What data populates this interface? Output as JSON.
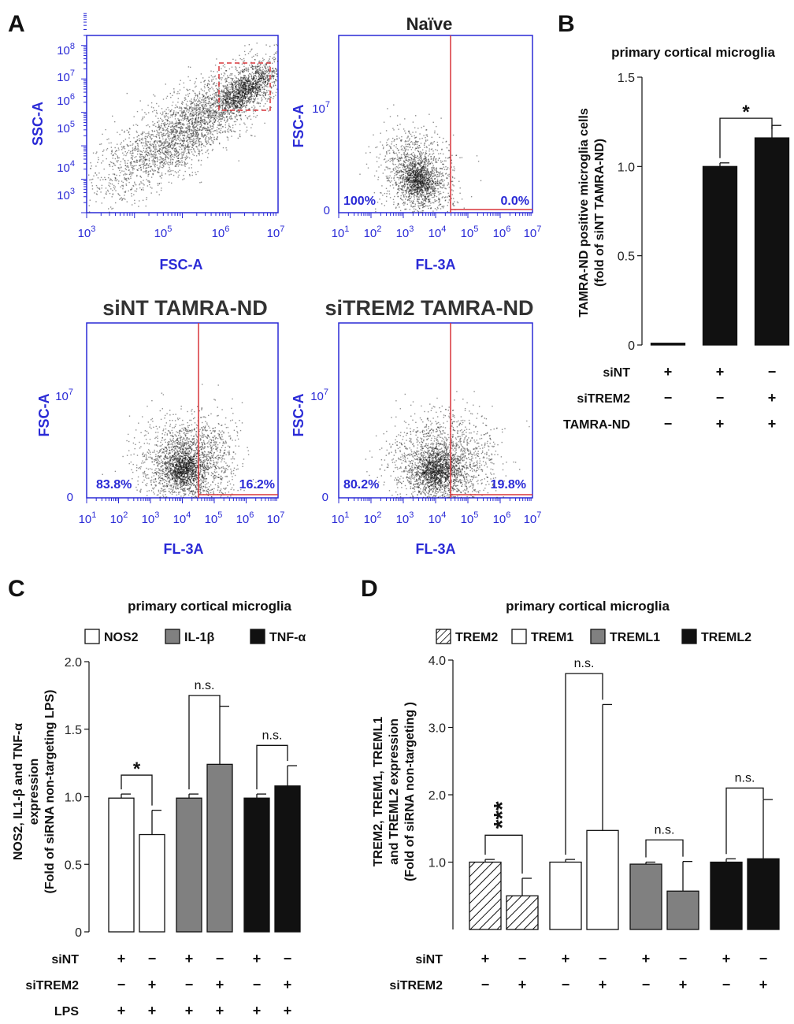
{
  "colors": {
    "blue": "#2a2ad6",
    "red": "#d8353a",
    "black": "#111111",
    "gray": "#808080",
    "white": "#ffffff"
  },
  "panel_letters": {
    "a": "A",
    "b": "B",
    "c": "C",
    "d": "D"
  },
  "panel_a": {
    "scatter": {
      "title": "",
      "xlabel": "FSC-A",
      "ylabel": "SSC-A",
      "xticks": [
        {
          "m": "10",
          "e": "3"
        },
        {
          "m": "10",
          "e": "5"
        },
        {
          "m": "10",
          "e": "6"
        },
        {
          "m": "10",
          "e": "7"
        }
      ],
      "yticks": [
        {
          "m": "10",
          "e": "3"
        },
        {
          "m": "10",
          "e": "4"
        },
        {
          "m": "10",
          "e": "5"
        },
        {
          "m": "10",
          "e": "6"
        },
        {
          "m": "10",
          "e": "7"
        },
        {
          "m": "10",
          "e": "8"
        }
      ]
    },
    "naive": {
      "title": "Naïve",
      "xlabel": "FL-3A",
      "ylabel": "FSC-A",
      "left_pct": "100%",
      "right_pct": "0.0%",
      "y_zero": "0",
      "y_tick": {
        "m": "10",
        "e": "7"
      },
      "xticks": [
        {
          "m": "10",
          "e": "1"
        },
        {
          "m": "10",
          "e": "2"
        },
        {
          "m": "10",
          "e": "3"
        },
        {
          "m": "10",
          "e": "4"
        },
        {
          "m": "10",
          "e": "5"
        },
        {
          "m": "10",
          "e": "6"
        },
        {
          "m": "10",
          "e": "7"
        }
      ]
    },
    "sint": {
      "title": "siNT TAMRA-ND",
      "xlabel": "FL-3A",
      "ylabel": "FSC-A",
      "left_pct": "83.8%",
      "right_pct": "16.2%",
      "y_zero": "0",
      "y_tick": {
        "m": "10",
        "e": "7"
      },
      "xticks": [
        {
          "m": "10",
          "e": "1"
        },
        {
          "m": "10",
          "e": "2"
        },
        {
          "m": "10",
          "e": "3"
        },
        {
          "m": "10",
          "e": "4"
        },
        {
          "m": "10",
          "e": "5"
        },
        {
          "m": "10",
          "e": "6"
        },
        {
          "m": "10",
          "e": "7"
        }
      ]
    },
    "sitrem2": {
      "title": "siTREM2 TAMRA-ND",
      "xlabel": "FL-3A",
      "ylabel": "FSC-A",
      "left_pct": "80.2%",
      "right_pct": "19.8%",
      "y_zero": "0",
      "y_tick": {
        "m": "10",
        "e": "7"
      },
      "xticks": [
        {
          "m": "10",
          "e": "1"
        },
        {
          "m": "10",
          "e": "2"
        },
        {
          "m": "10",
          "e": "3"
        },
        {
          "m": "10",
          "e": "4"
        },
        {
          "m": "10",
          "e": "5"
        },
        {
          "m": "10",
          "e": "6"
        },
        {
          "m": "10",
          "e": "7"
        }
      ]
    }
  },
  "chart_data": [
    {
      "id": "B",
      "type": "bar",
      "title": "primary cortical microglia",
      "ylabel_lines": [
        "TAMRA-ND positive microglia cells",
        "(fold of siNT TAMRA-ND)"
      ],
      "ylim": [
        0,
        1.5
      ],
      "yticks": [
        "0",
        "0.5",
        "1.0",
        "1.5"
      ],
      "bars": [
        {
          "value": 0.01,
          "error": 0.0,
          "fill": "black"
        },
        {
          "value": 1.0,
          "error": 0.02,
          "fill": "black"
        },
        {
          "value": 1.16,
          "error": 0.07,
          "fill": "black"
        }
      ],
      "significance": [
        {
          "from": 1,
          "to": 2,
          "label": "*",
          "y": 1.27
        }
      ],
      "conditions": [
        {
          "label": "siNT",
          "signs": [
            "+",
            "+",
            "−"
          ]
        },
        {
          "label": "siTREM2",
          "signs": [
            "−",
            "−",
            "+"
          ]
        },
        {
          "label": "TAMRA-ND",
          "signs": [
            "−",
            "+",
            "+"
          ]
        }
      ]
    },
    {
      "id": "C",
      "type": "bar",
      "title": "primary cortical microglia",
      "ylabel_lines": [
        "NOS2, IL1-β and TNF-α",
        "expression",
        "(Fold of siRNA non-targeting  LPS)"
      ],
      "ylim": [
        0,
        2.0
      ],
      "yticks": [
        "0",
        "0.5",
        "1.0",
        "1.5",
        "2.0"
      ],
      "legend": [
        {
          "label": "NOS2",
          "fill": "white"
        },
        {
          "label": "IL-1β",
          "fill": "gray"
        },
        {
          "label": "TNF-α",
          "fill": "black"
        }
      ],
      "bars": [
        {
          "value": 0.99,
          "error": 0.03,
          "fill": "white"
        },
        {
          "value": 0.72,
          "error": 0.18,
          "fill": "white"
        },
        {
          "value": 0.99,
          "error": 0.03,
          "fill": "gray"
        },
        {
          "value": 1.24,
          "error": 0.43,
          "fill": "gray"
        },
        {
          "value": 0.99,
          "error": 0.03,
          "fill": "black"
        },
        {
          "value": 1.08,
          "error": 0.15,
          "fill": "black"
        }
      ],
      "significance": [
        {
          "from": 0,
          "to": 1,
          "label": "*",
          "y": 1.16
        },
        {
          "from": 2,
          "to": 3,
          "label": "n.s.",
          "y": 1.75
        },
        {
          "from": 4,
          "to": 5,
          "label": "n.s.",
          "y": 1.38
        }
      ],
      "conditions": [
        {
          "label": "siNT",
          "signs": [
            "+",
            "−",
            "+",
            "−",
            "+",
            "−"
          ]
        },
        {
          "label": "siTREM2",
          "signs": [
            "−",
            "+",
            "−",
            "+",
            "−",
            "+"
          ]
        },
        {
          "label": "LPS",
          "signs": [
            "+",
            "+",
            "+",
            "+",
            "+",
            "+"
          ]
        }
      ]
    },
    {
      "id": "D",
      "type": "bar",
      "title": "primary cortical microglia",
      "ylabel_lines": [
        "TREM2, TREM1, TREML1",
        "and TREML2 expression",
        "(Fold of siRNA non-targeting )"
      ],
      "ylim": [
        0,
        4.0
      ],
      "yticks": [
        "1.0",
        "2.0",
        "3.0",
        "4.0"
      ],
      "legend": [
        {
          "label": "TREM2",
          "fill": "hatch"
        },
        {
          "label": "TREM1",
          "fill": "white"
        },
        {
          "label": "TREML1",
          "fill": "gray"
        },
        {
          "label": "TREML2",
          "fill": "black"
        }
      ],
      "bars": [
        {
          "value": 1.0,
          "error": 0.04,
          "fill": "hatch"
        },
        {
          "value": 0.5,
          "error": 0.26,
          "fill": "hatch"
        },
        {
          "value": 1.0,
          "error": 0.04,
          "fill": "white"
        },
        {
          "value": 1.47,
          "error": 1.87,
          "fill": "white"
        },
        {
          "value": 0.97,
          "error": 0.03,
          "fill": "gray"
        },
        {
          "value": 0.57,
          "error": 0.44,
          "fill": "gray"
        },
        {
          "value": 1.0,
          "error": 0.05,
          "fill": "black"
        },
        {
          "value": 1.05,
          "error": 0.88,
          "fill": "black"
        }
      ],
      "significance": [
        {
          "from": 0,
          "to": 1,
          "label": "***",
          "y": 1.4
        },
        {
          "from": 2,
          "to": 3,
          "label": "n.s.",
          "y": 3.8
        },
        {
          "from": 4,
          "to": 5,
          "label": "n.s.",
          "y": 1.33
        },
        {
          "from": 6,
          "to": 7,
          "label": "n.s.",
          "y": 2.1
        }
      ],
      "conditions": [
        {
          "label": "siNT",
          "signs": [
            "+",
            "−",
            "+",
            "−",
            "+",
            "−",
            "+",
            "−"
          ]
        },
        {
          "label": "siTREM2",
          "signs": [
            "−",
            "+",
            "−",
            "+",
            "−",
            "+",
            "−",
            "+"
          ]
        }
      ]
    }
  ]
}
